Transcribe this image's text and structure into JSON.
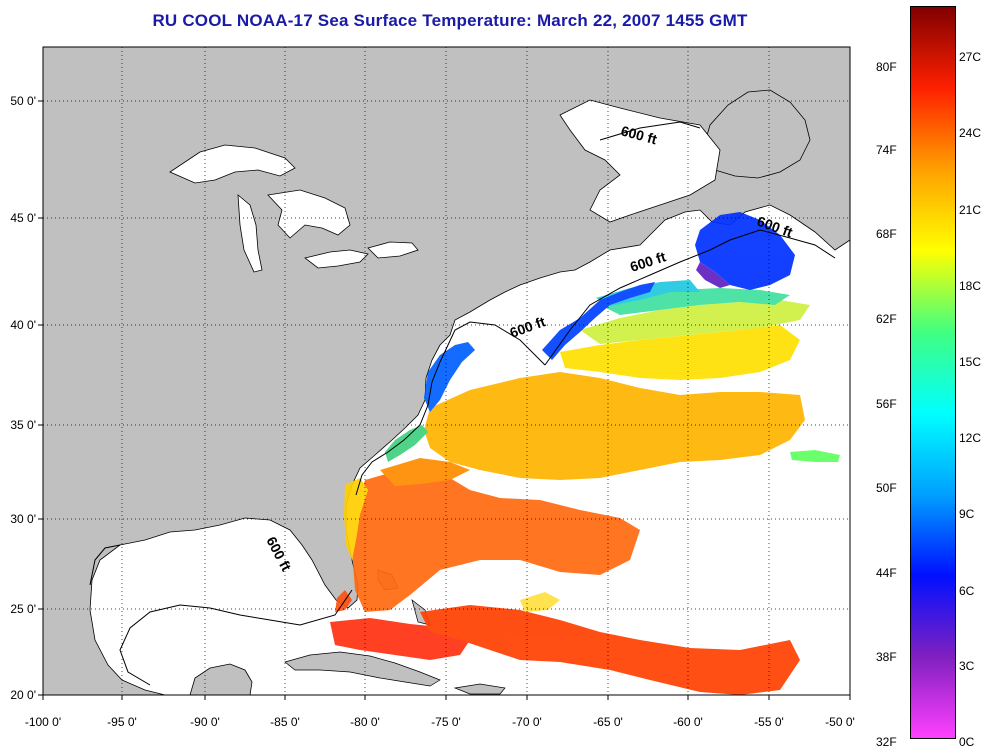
{
  "title": "RU COOL  NOAA-17  Sea Surface Temperature:  March 22, 2007 1455 GMT",
  "map": {
    "longitude_ticks": [
      "-100 0'",
      "-95 0'",
      "-90 0'",
      "-85 0'",
      "-80 0'",
      "-75 0'",
      "-70 0'",
      "-65 0'",
      "-60 0'",
      "-55 0'",
      "-50 0'"
    ],
    "latitude_ticks": [
      "50 0'",
      "45 0'",
      "40 0'",
      "35 0'",
      "30 0'",
      "25 0'",
      "20 0'"
    ],
    "lon_range": [
      -100,
      -50
    ],
    "lat_range": [
      20,
      52.5
    ],
    "contour_labels": [
      "600 ft",
      "600 ft",
      "600 ft",
      "600 ft",
      "600 ft"
    ],
    "land_color": "#c0c0c0",
    "no_data_color": "#ffffff",
    "grid": "dotted"
  },
  "colorbar": {
    "fahrenheit_labels": [
      "80F",
      "74F",
      "68F",
      "62F",
      "56F",
      "50F",
      "44F",
      "38F",
      "32F"
    ],
    "celsius_labels": [
      "27C",
      "24C",
      "21C",
      "18C",
      "15C",
      "12C",
      "9C",
      "6C",
      "3C",
      "0C"
    ],
    "colors": [
      "#ff40ff",
      "#8020c0",
      "#0010ff",
      "#00a0ff",
      "#00ffff",
      "#40ff80",
      "#ffff00",
      "#ffa000",
      "#ff2000",
      "#800000"
    ]
  }
}
